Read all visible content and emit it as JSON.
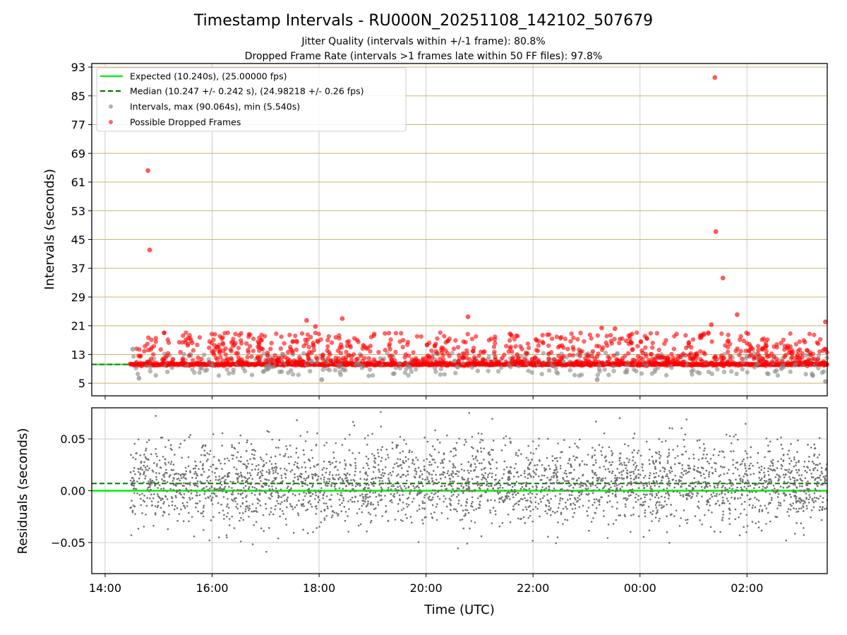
{
  "title": "Timestamp Intervals - RU000N_20251108_142102_507679",
  "subtitle_1": "Jitter Quality (intervals within +/-1 frame): 80.8%",
  "subtitle_2": "Dropped Frame Rate (intervals >1 frames late within 50 FF files): 97.8%",
  "colors": {
    "expected": "#00ee00",
    "median": "#007700",
    "intervals": "#888888",
    "dropped": "#ff0000",
    "residuals": "#707070",
    "hgrid_top": "#c9b56a",
    "grid": "#cccccc"
  },
  "chart_data": [
    {
      "type": "scatter",
      "panel": "intervals",
      "ylabel": "Intervals (seconds)",
      "xlabel": "",
      "x_unit": "time of day (UTC), hours",
      "xlim": [
        "13:45",
        "03:30 (+1 day)"
      ],
      "ylim": [
        1.5,
        94
      ],
      "yticks": [
        "5",
        "13",
        "21",
        "29",
        "37",
        "45",
        "53",
        "61",
        "69",
        "77",
        "85",
        "93"
      ],
      "grid": "x grid gray, y grid khaki at every y tick",
      "legend_position": "top-left",
      "legend": [
        {
          "label": "Expected (10.240s), (25.00000 fps)",
          "style": "solid-line",
          "color": "#00ee00"
        },
        {
          "label": "Median (10.247 +/- 0.242 s), (24.98218 +/- 0.26 fps)",
          "style": "dashed-line",
          "color": "#007700"
        },
        {
          "label": "Intervals, max (90.064s), min (5.540s)",
          "style": "marker",
          "color": "#888888"
        },
        {
          "label": "Possible Dropped Frames",
          "style": "marker",
          "color": "#ff0000"
        }
      ],
      "expected_interval": 10.24,
      "median_interval": 10.247,
      "data_x_range": [
        "14:28",
        "03:30 (+1 day)"
      ],
      "notable_points": [
        {
          "series": "Possible Dropped Frames",
          "time": "14:48",
          "value": 64.2
        },
        {
          "series": "Possible Dropped Frames",
          "time": "14:50",
          "value": 42.1
        },
        {
          "series": "Possible Dropped Frames",
          "time": "17:46",
          "value": 22.5
        },
        {
          "series": "Possible Dropped Frames",
          "time": "17:56",
          "value": 20.8
        },
        {
          "series": "Possible Dropped Frames",
          "time": "18:26",
          "value": 23.0
        },
        {
          "series": "Possible Dropped Frames",
          "time": "20:47",
          "value": 23.5
        },
        {
          "series": "Possible Dropped Frames",
          "time": "01:24",
          "value": 90.1
        },
        {
          "series": "Possible Dropped Frames",
          "time": "01:25",
          "value": 47.2
        },
        {
          "series": "Possible Dropped Frames",
          "time": "01:33",
          "value": 34.3
        },
        {
          "series": "Possible Dropped Frames",
          "time": "01:49",
          "value": 24.1
        },
        {
          "series": "Possible Dropped Frames",
          "time": "01:20",
          "value": 21.3
        },
        {
          "series": "Possible Dropped Frames",
          "time": "23:17",
          "value": 20.4
        },
        {
          "series": "Possible Dropped Frames",
          "time": "23:32",
          "value": 20.2
        },
        {
          "series": "Possible Dropped Frames",
          "time": "03:28",
          "value": 22.1
        },
        {
          "series": "Intervals, max (90.064s), min (5.540s)",
          "time": "14:31",
          "value": 14.5
        },
        {
          "series": "Intervals, max (90.064s), min (5.540s)",
          "time": "14:38",
          "value": 6.4
        },
        {
          "series": "Intervals, max (90.064s), min (5.540s)",
          "time": "18:03",
          "value": 6.0
        },
        {
          "series": "Intervals, max (90.064s), min (5.540s)",
          "time": "23:12",
          "value": 6.0
        },
        {
          "series": "Intervals, max (90.064s), min (5.540s)",
          "time": "03:28",
          "value": 5.5
        }
      ]
    },
    {
      "type": "scatter",
      "panel": "residuals",
      "ylabel": "Residuals (seconds)",
      "xlabel": "Time (UTC)",
      "xlim": [
        "13:45",
        "03:30 (+1 day)"
      ],
      "ylim": [
        -0.08,
        0.08
      ],
      "yticks": [
        "−0.05",
        "0.00",
        "0.05"
      ],
      "xticks": [
        "14:00",
        "16:00",
        "18:00",
        "20:00",
        "22:00",
        "00:00",
        "02:00"
      ],
      "grid": "on",
      "expected_residual": 0.0,
      "median_residual": 0.007,
      "typical_spread": 0.02,
      "range_observed": [
        -0.072,
        0.076
      ]
    }
  ]
}
